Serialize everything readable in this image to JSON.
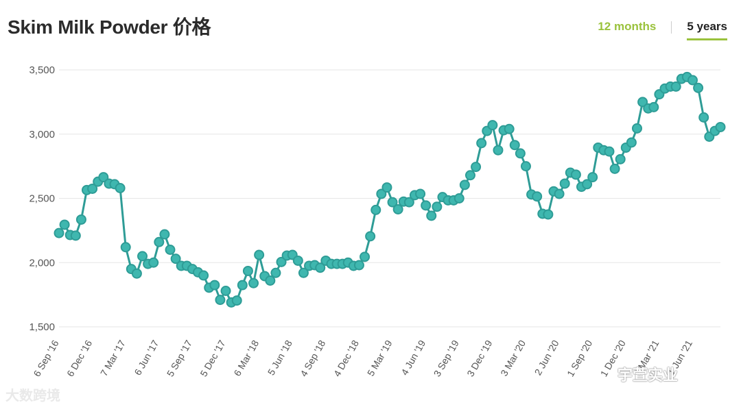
{
  "header": {
    "title": "Skim Milk Powder 价格",
    "tabs": [
      "12 months",
      "5 years"
    ],
    "active_tab": "5 years"
  },
  "colors": {
    "line": "#2e9c96",
    "marker_fill": "#3fb7af",
    "accent": "#9ac23c",
    "grid": "#e6e6e6"
  },
  "watermarks": {
    "left": "大数跨境",
    "right": "宇萱实业"
  },
  "chart_data": {
    "type": "line",
    "title": "Skim Milk Powder 价格",
    "xlabel": "",
    "ylabel": "",
    "ylim": [
      1500,
      3500
    ],
    "yticks": [
      1500,
      2000,
      2500,
      3000,
      3500
    ],
    "ytick_labels": [
      "1,500",
      "2,000",
      "2,500",
      "3,000",
      "3,500"
    ],
    "grid": true,
    "xtick_labels": [
      "6 Sep '16",
      "6 Dec '16",
      "7 Mar '17",
      "6 Jun '17",
      "5 Sep '17",
      "5 Dec '17",
      "6 Mar '18",
      "5 Jun '18",
      "4 Sep '18",
      "4 Dec '18",
      "5 Mar '19",
      "4 Jun '19",
      "3 Sep '19",
      "3 Dec '19",
      "3 Mar '20",
      "2 Jun '20",
      "1 Sep '20",
      "1 Dec '20",
      "2 Mar '21",
      "1 Jun '21"
    ],
    "xtick_index": [
      0,
      6,
      12,
      18,
      24,
      30,
      36,
      42,
      48,
      54,
      60,
      66,
      72,
      78,
      84,
      90,
      96,
      102,
      108,
      114
    ],
    "series": [
      {
        "name": "",
        "values": [
          2230,
          2295,
          2215,
          2210,
          2335,
          2565,
          2575,
          2630,
          2665,
          2615,
          2610,
          2580,
          2120,
          1950,
          1915,
          2050,
          1990,
          2000,
          2160,
          2220,
          2100,
          2030,
          1975,
          1975,
          1950,
          1925,
          1900,
          1805,
          1825,
          1710,
          1780,
          1690,
          1705,
          1825,
          1935,
          1840,
          2060,
          1895,
          1860,
          1920,
          2005,
          2055,
          2060,
          2015,
          1920,
          1975,
          1980,
          1960,
          2015,
          1990,
          1990,
          1990,
          2000,
          1975,
          1980,
          2045,
          2205,
          2410,
          2535,
          2585,
          2470,
          2415,
          2475,
          2470,
          2525,
          2535,
          2445,
          2365,
          2435,
          2510,
          2485,
          2485,
          2500,
          2605,
          2680,
          2745,
          2930,
          3025,
          3070,
          2875,
          3030,
          3040,
          2915,
          2850,
          2750,
          2530,
          2515,
          2380,
          2375,
          2555,
          2535,
          2615,
          2700,
          2685,
          2590,
          2610,
          2665,
          2895,
          2875,
          2865,
          2730,
          2805,
          2895,
          2935,
          3045,
          3250,
          3200,
          3210,
          3310,
          3355,
          3370,
          3370,
          3430,
          3445,
          3420,
          3360,
          3130,
          2980,
          3025,
          3055
        ]
      }
    ]
  }
}
